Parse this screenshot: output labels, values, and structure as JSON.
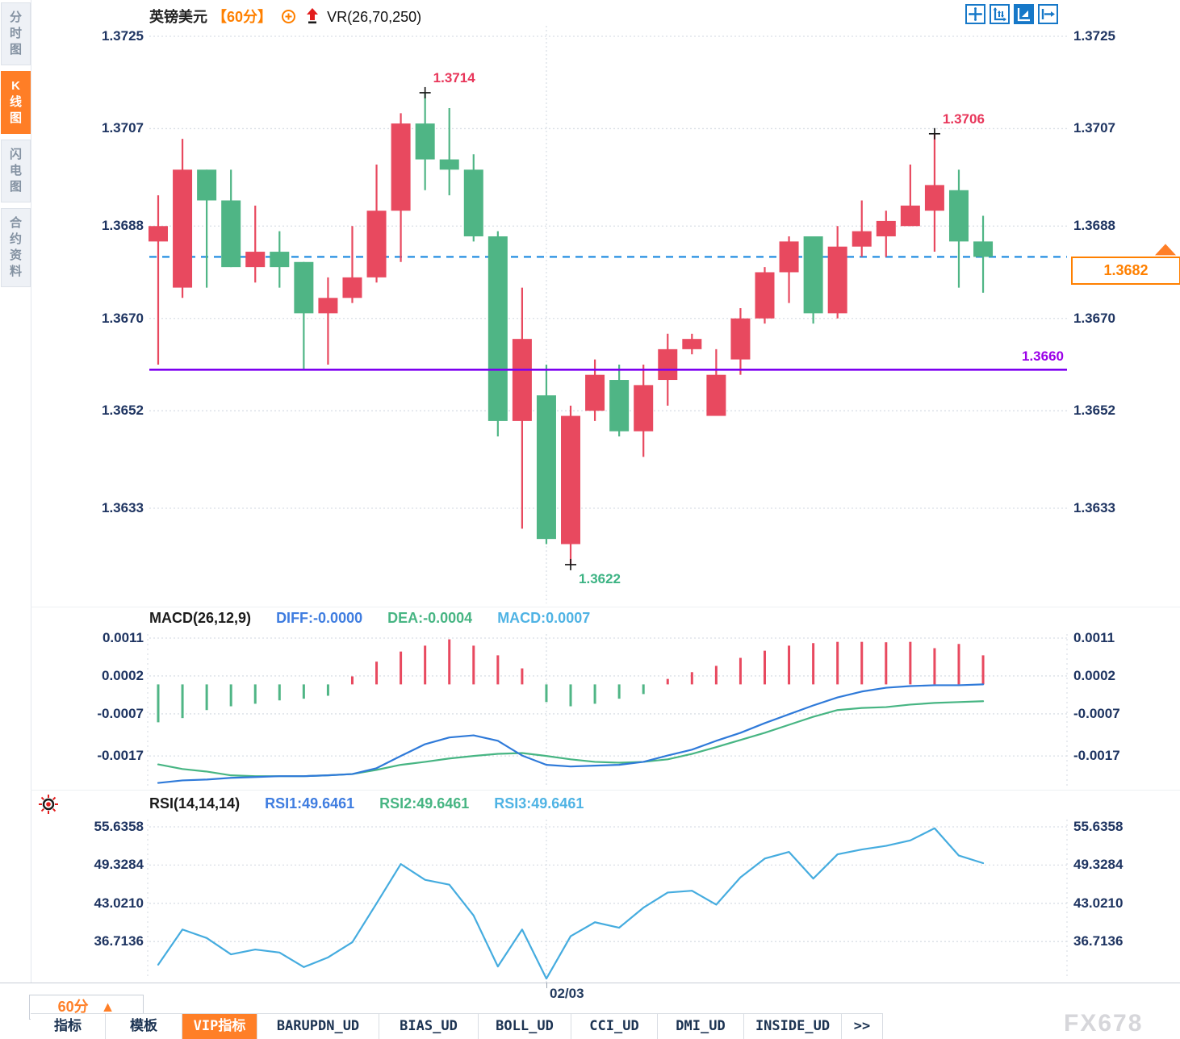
{
  "header": {
    "title": "英镑美元",
    "period_tag": "【60分】",
    "overlay_indicator": "VR(26,70,250)"
  },
  "app": {
    "date_axis_label": "02/03",
    "period_button": "60分",
    "period_button_arrow": "▲",
    "watermark": "FX678",
    "more_tabs": ">>"
  },
  "sidebar": {
    "items": [
      {
        "label": "分时图",
        "active": false
      },
      {
        "label": "K线图",
        "active": true
      },
      {
        "label": "闪电图",
        "active": false
      },
      {
        "label": "合约资料",
        "active": false
      }
    ]
  },
  "toolbar_icons": [
    "crosshair-move-icon",
    "axis-scale-icon",
    "drawing-pointer-icon",
    "pan-right-icon"
  ],
  "bottom_tabs": [
    {
      "label": "指标",
      "active": false
    },
    {
      "label": "模板",
      "active": false
    },
    {
      "label": "VIP指标",
      "active": true
    },
    {
      "label": "BARUPDN_UD",
      "active": false
    },
    {
      "label": "BIAS_UD",
      "active": false
    },
    {
      "label": "BOLL_UD",
      "active": false
    },
    {
      "label": "CCI_UD",
      "active": false
    },
    {
      "label": "DMI_UD",
      "active": false
    },
    {
      "label": "INSIDE_UD",
      "active": false
    },
    {
      "label": ">>",
      "active": false
    }
  ],
  "price_axis": {
    "labels": [
      "1.3725",
      "1.3707",
      "1.3688",
      "1.3670",
      "1.3652",
      "1.3633"
    ]
  },
  "macd_axis": [
    "0.0011",
    "0.0002",
    "-0.0007",
    "-0.0017"
  ],
  "rsi_axis": [
    "55.6358",
    "49.3284",
    "43.0210",
    "36.7136"
  ],
  "macd_header": {
    "name": "MACD(26,12,9)",
    "diff": "DIFF:-0.0000",
    "dea": "DEA:-0.0004",
    "macd": "MACD:0.0007"
  },
  "rsi_header": {
    "name": "RSI(14,14,14)",
    "rsi1": "RSI1:49.6461",
    "rsi2": "RSI2:49.6461",
    "rsi3": "RSI3:49.6461"
  },
  "annotations": {
    "high1": "1.3714",
    "high2": "1.3706",
    "low": "1.3622",
    "support": "1.3660",
    "last_price": "1.3682"
  },
  "colors": {
    "up": "#e8495f",
    "down": "#4fb585",
    "last_line": "#1787e0",
    "support_line": "#7d00f0",
    "support_text": "#9b00e8",
    "accent_orange": "#ff7f27",
    "axis_text": "#1e3461",
    "grid": "#dadfe6",
    "macd_diff_line": "#2f7ad9",
    "macd_dea_line": "#47b583",
    "rsi_line": "#45acdf",
    "icon_blue": "#1678c8",
    "marker_cross": "#1b1b1b"
  },
  "chart_data": {
    "type": "candlestick+macd+rsi",
    "symbol": "英镑美元 (GBP/USD)",
    "interval": "60分",
    "overlay": "VR(26,70,250)",
    "price_ticks": [
      1.3725,
      1.3707,
      1.3688,
      1.367,
      1.3652,
      1.3633
    ],
    "price_ylim": [
      1.3615,
      1.3728
    ],
    "last_price": 1.3682,
    "support_line": 1.366,
    "session_break_index": 16,
    "session_break_label": "02/03",
    "markers": [
      {
        "type": "high",
        "index": 11,
        "price": 1.3714
      },
      {
        "type": "high",
        "index": 32,
        "price": 1.3706
      },
      {
        "type": "low",
        "index": 17,
        "price": 1.3622
      }
    ],
    "candles_ohlc": [
      [
        1.3685,
        1.3694,
        1.3661,
        1.3688
      ],
      [
        1.3676,
        1.3705,
        1.3674,
        1.3699
      ],
      [
        1.3699,
        1.3699,
        1.3676,
        1.3693
      ],
      [
        1.3693,
        1.3699,
        1.368,
        1.368
      ],
      [
        1.368,
        1.3692,
        1.3677,
        1.3683
      ],
      [
        1.3683,
        1.3687,
        1.3676,
        1.368
      ],
      [
        1.3681,
        1.3681,
        1.366,
        1.3671
      ],
      [
        1.3671,
        1.3678,
        1.3661,
        1.3674
      ],
      [
        1.3674,
        1.3688,
        1.3673,
        1.3678
      ],
      [
        1.3678,
        1.37,
        1.3677,
        1.3691
      ],
      [
        1.3691,
        1.371,
        1.3681,
        1.3708
      ],
      [
        1.3708,
        1.3714,
        1.3695,
        1.3701
      ],
      [
        1.3701,
        1.3711,
        1.3694,
        1.3699
      ],
      [
        1.3699,
        1.3702,
        1.3685,
        1.3686
      ],
      [
        1.3686,
        1.3687,
        1.3647,
        1.365
      ],
      [
        1.365,
        1.3676,
        1.3629,
        1.3666
      ],
      [
        1.3655,
        1.3661,
        1.3626,
        1.3627
      ],
      [
        1.3626,
        1.3653,
        1.3622,
        1.3651
      ],
      [
        1.3652,
        1.3662,
        1.365,
        1.3659
      ],
      [
        1.3658,
        1.3661,
        1.3647,
        1.3648
      ],
      [
        1.3648,
        1.3661,
        1.3643,
        1.3657
      ],
      [
        1.3658,
        1.3667,
        1.3653,
        1.3664
      ],
      [
        1.3664,
        1.3667,
        1.3663,
        1.3666
      ],
      [
        1.3651,
        1.3664,
        1.3651,
        1.3659
      ],
      [
        1.3662,
        1.3672,
        1.3659,
        1.367
      ],
      [
        1.367,
        1.368,
        1.3669,
        1.3679
      ],
      [
        1.3679,
        1.3686,
        1.3673,
        1.3685
      ],
      [
        1.3686,
        1.3686,
        1.3669,
        1.3671
      ],
      [
        1.3671,
        1.3688,
        1.367,
        1.3684
      ],
      [
        1.3684,
        1.3693,
        1.3682,
        1.3687
      ],
      [
        1.3686,
        1.3691,
        1.3682,
        1.3689
      ],
      [
        1.3688,
        1.37,
        1.3688,
        1.3692
      ],
      [
        1.3691,
        1.3706,
        1.3683,
        1.3696
      ],
      [
        1.3695,
        1.3699,
        1.3676,
        1.3685
      ],
      [
        1.3685,
        1.369,
        1.3675,
        1.3682
      ]
    ],
    "macd": {
      "params": [
        26,
        12,
        9
      ],
      "ticks": [
        0.0011,
        0.0002,
        -0.0007,
        -0.0017
      ],
      "diff_last": -0.0,
      "dea_last": -0.0004,
      "macd_last": 0.0007,
      "histogram": [
        -0.0009,
        -0.0008,
        -0.00061,
        -0.00052,
        -0.00046,
        -0.00038,
        -0.00034,
        -0.00027,
        0.00019,
        0.00054,
        0.00078,
        0.00092,
        0.00107,
        0.00092,
        0.00069,
        0.00038,
        -0.00042,
        -0.00052,
        -0.00046,
        -0.00034,
        -0.00023,
        0.00013,
        0.00029,
        0.00044,
        0.00063,
        0.0008,
        0.00092,
        0.00098,
        0.00101,
        0.00101,
        0.001,
        0.00101,
        0.00086,
        0.00096,
        0.00069
      ],
      "diff": [
        -0.00234,
        -0.00228,
        -0.00226,
        -0.00222,
        -0.0022,
        -0.00218,
        -0.00218,
        -0.00216,
        -0.00213,
        -0.00199,
        -0.0017,
        -0.00142,
        -0.00126,
        -0.00121,
        -0.00134,
        -0.00169,
        -0.00191,
        -0.00195,
        -0.00193,
        -0.00191,
        -0.00184,
        -0.00169,
        -0.00155,
        -0.00134,
        -0.00115,
        -0.00092,
        -0.00071,
        -0.0005,
        -0.00031,
        -0.00017,
        -8e-05,
        -4e-05,
        -2e-05,
        -2e-05,
        0.0
      ],
      "dea": [
        -0.0019,
        -0.00201,
        -0.00207,
        -0.00216,
        -0.00218,
        -0.00218,
        -0.00218,
        -0.00216,
        -0.00213,
        -0.00203,
        -0.00191,
        -0.00184,
        -0.00176,
        -0.0017,
        -0.00165,
        -0.00163,
        -0.0017,
        -0.00178,
        -0.00184,
        -0.00186,
        -0.00184,
        -0.00178,
        -0.00165,
        -0.00149,
        -0.00132,
        -0.00115,
        -0.00096,
        -0.00077,
        -0.00061,
        -0.00056,
        -0.00054,
        -0.00048,
        -0.00044,
        -0.00042,
        -0.0004
      ]
    },
    "rsi": {
      "params": [
        14,
        14,
        14
      ],
      "ticks": [
        55.6358,
        49.3284,
        43.021,
        36.7136
      ],
      "values": [
        32.9,
        38.7,
        37.3,
        34.6,
        35.4,
        34.9,
        32.5,
        34.1,
        36.6,
        43.0,
        49.5,
        46.9,
        46.1,
        41.0,
        32.6,
        38.7,
        30.6,
        37.6,
        39.9,
        39.0,
        42.3,
        44.8,
        45.1,
        42.8,
        47.3,
        50.4,
        51.5,
        47.1,
        51.1,
        51.9,
        52.5,
        53.4,
        55.4,
        50.9,
        49.6461
      ]
    }
  }
}
